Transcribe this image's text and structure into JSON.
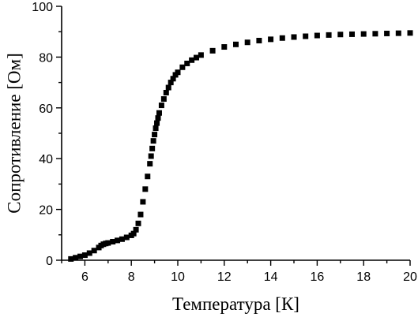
{
  "chart_data": {
    "type": "scatter",
    "title": "",
    "xlabel": "Температура [К]",
    "ylabel": "Сопротивление [Ом]",
    "xlim": [
      5,
      20
    ],
    "ylim": [
      0,
      100
    ],
    "x_ticks": [
      "6",
      "8",
      "10",
      "12",
      "14",
      "16",
      "18",
      "20"
    ],
    "y_ticks": [
      "0",
      "20",
      "40",
      "60",
      "80",
      "100"
    ],
    "grid": false,
    "legend": "none",
    "marker": "square",
    "marker_color": "#000000",
    "series": [
      {
        "x": [
          5.4,
          5.6,
          5.8,
          6.0,
          6.2,
          6.4,
          6.6,
          6.7,
          6.8,
          6.9,
          7.0,
          7.2,
          7.4,
          7.6,
          7.8,
          8.0,
          8.1,
          8.2,
          8.3,
          8.4,
          8.5,
          8.6,
          8.7,
          8.8,
          8.85,
          8.9,
          8.95,
          9.0,
          9.05,
          9.1,
          9.15,
          9.2,
          9.3,
          9.4,
          9.5,
          9.6,
          9.7,
          9.8,
          9.9,
          10.0,
          10.2,
          10.4,
          10.6,
          10.8,
          11.0,
          11.5,
          12.0,
          12.5,
          13.0,
          13.5,
          14.0,
          14.5,
          15.0,
          15.5,
          16.0,
          16.5,
          17.0,
          17.5,
          18.0,
          18.5,
          19.0,
          19.5,
          20.0
        ],
        "y": [
          0.5,
          1.0,
          1.5,
          2.0,
          2.8,
          3.8,
          5.0,
          5.8,
          6.3,
          6.6,
          6.8,
          7.3,
          7.8,
          8.3,
          9.0,
          9.8,
          10.5,
          12.0,
          14.5,
          18.0,
          23.0,
          28.0,
          33.0,
          38.0,
          41.0,
          44.0,
          47.0,
          49.5,
          52.0,
          54.0,
          56.0,
          58.0,
          61.0,
          63.5,
          66.0,
          68.0,
          70.0,
          71.5,
          73.0,
          74.0,
          76.0,
          77.5,
          78.8,
          79.8,
          80.8,
          82.5,
          84.0,
          85.0,
          85.8,
          86.5,
          87.0,
          87.5,
          87.9,
          88.2,
          88.5,
          88.7,
          88.9,
          89.0,
          89.1,
          89.2,
          89.3,
          89.4,
          89.5
        ]
      }
    ]
  }
}
